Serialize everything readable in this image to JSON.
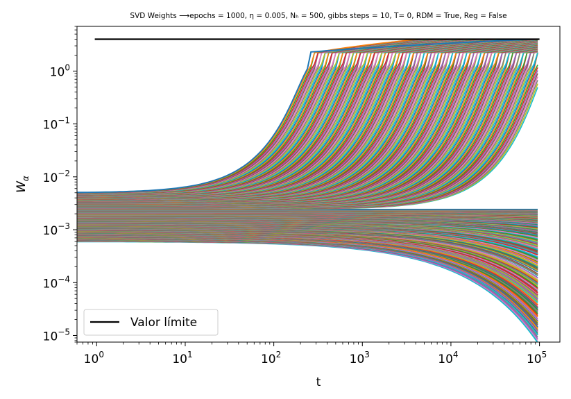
{
  "chart_data": {
    "type": "line",
    "title": "SVD Weights ⟶epochs = 1000, η = 0.005, Nₕ = 500, gibbs steps = 10, T= 0, RDM = True, Reg = False",
    "xlabel": "t",
    "ylabel": "Wα",
    "xscale": "log",
    "yscale": "log",
    "xlim": [
      0.6,
      170000
    ],
    "ylim": [
      7.5e-06,
      7
    ],
    "xticks": [
      1,
      10,
      100,
      1000,
      10000,
      100000
    ],
    "xtick_labels": [
      [
        "10",
        "0"
      ],
      [
        "10",
        "1"
      ],
      [
        "10",
        "2"
      ],
      [
        "10",
        "3"
      ],
      [
        "10",
        "4"
      ],
      [
        "10",
        "5"
      ]
    ],
    "yticks": [
      1e-05,
      0.0001,
      0.001,
      0.01,
      0.1,
      1
    ],
    "ytick_labels": [
      [
        "10",
        "−5"
      ],
      [
        "10",
        "−4"
      ],
      [
        "10",
        "−3"
      ],
      [
        "10",
        "−2"
      ],
      [
        "10",
        "−1"
      ],
      [
        "10",
        "0"
      ]
    ],
    "grid": false,
    "legend_position": "lower-left",
    "limit_line": {
      "name": "Valor límite",
      "value": 4.0,
      "color": "#000000"
    },
    "series_count": 500,
    "initial_range": [
      0.0006,
      0.005
    ],
    "series_samples": [
      {
        "initial": 0.005,
        "t": [
          1,
          10,
          30,
          60,
          100,
          150,
          200,
          260,
          100000
        ],
        "values": [
          0.005,
          0.005,
          0.006,
          0.012,
          0.05,
          0.3,
          1.0,
          2.3,
          4.0
        ]
      },
      {
        "initial": 0.0013,
        "t": [
          1,
          100,
          1000,
          10000,
          100000
        ],
        "values": [
          0.0013,
          0.0013,
          0.0013,
          0.0013,
          0.0013
        ]
      },
      {
        "initial": 0.0006,
        "t": [
          1,
          100,
          300,
          1000,
          3000,
          10000,
          30000,
          100000
        ],
        "values": [
          0.0006,
          0.00059,
          0.00053,
          0.0004,
          0.00028,
          0.00012,
          5e-05,
          1.3e-05
        ]
      }
    ],
    "palette": [
      "#1f77b4",
      "#ff7f0e",
      "#2ca02c",
      "#d62728",
      "#9467bd",
      "#8c564b",
      "#e377c2",
      "#7f7f7f",
      "#bcbd22",
      "#17becf"
    ]
  }
}
